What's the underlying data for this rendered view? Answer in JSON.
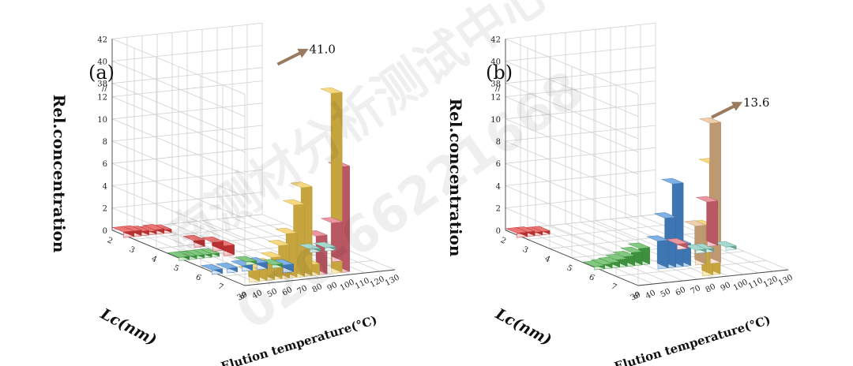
{
  "chart_data": [
    {
      "type": "bar3d",
      "panel_label": "(a)",
      "zlabel": "Rel.concentration",
      "xlabel": "Elution temperature(°C)",
      "ylabel": "Lc(nm)",
      "z_ticks": [
        "0",
        "2",
        "4",
        "6",
        "8",
        "10",
        "12",
        "38",
        "40",
        "42"
      ],
      "x_ticks": [
        "30",
        "40",
        "50",
        "60",
        "70",
        "80",
        "90",
        "100",
        "110",
        "120",
        "130"
      ],
      "y_ticks": [
        "2",
        "3",
        "4",
        "5",
        "6",
        "7",
        "8"
      ],
      "z_axis_break": [
        12,
        38
      ],
      "callout": {
        "text": "41.0",
        "x": 95,
        "y": 5,
        "value": 41.0
      },
      "bars": [
        {
          "x": 30,
          "y": 2.5,
          "z": 0.5,
          "color": "#e23b3b"
        },
        {
          "x": 35,
          "y": 2.5,
          "z": 0.5,
          "color": "#e23b3b"
        },
        {
          "x": 40,
          "y": 2.5,
          "z": 0.4,
          "color": "#e23b3b"
        },
        {
          "x": 45,
          "y": 2.5,
          "z": 0.3,
          "color": "#e23b3b"
        },
        {
          "x": 50,
          "y": 2.5,
          "z": 0.4,
          "color": "#e23b3b"
        },
        {
          "x": 55,
          "y": 2.5,
          "z": 0.3,
          "color": "#e23b3b"
        },
        {
          "x": 55,
          "y": 4,
          "z": 0.6,
          "color": "#e23b3b"
        },
        {
          "x": 60,
          "y": 4.5,
          "z": 0.8,
          "color": "#e23b3b"
        },
        {
          "x": 60,
          "y": 5,
          "z": 0.9,
          "color": "#e23b3b"
        },
        {
          "x": 30,
          "y": 5,
          "z": 0.3,
          "color": "#4bb04b"
        },
        {
          "x": 35,
          "y": 5,
          "z": 0.3,
          "color": "#4bb04b"
        },
        {
          "x": 40,
          "y": 5,
          "z": 0.3,
          "color": "#4bb04b"
        },
        {
          "x": 45,
          "y": 5,
          "z": 0.3,
          "color": "#4bb04b"
        },
        {
          "x": 50,
          "y": 5,
          "z": 0.3,
          "color": "#4bb04b"
        },
        {
          "x": 60,
          "y": 6,
          "z": 0.3,
          "color": "#4bb04b"
        },
        {
          "x": 70,
          "y": 6.5,
          "z": 0.3,
          "color": "#4bb04b"
        },
        {
          "x": 30,
          "y": 6.5,
          "z": 0.4,
          "color": "#4a90d9"
        },
        {
          "x": 40,
          "y": 6.5,
          "z": 0.4,
          "color": "#4a90d9"
        },
        {
          "x": 50,
          "y": 6.5,
          "z": 0.5,
          "color": "#4a90d9"
        },
        {
          "x": 60,
          "y": 6.5,
          "z": 0.6,
          "color": "#4a90d9"
        },
        {
          "x": 70,
          "y": 7,
          "z": 0.7,
          "color": "#4a90d9"
        },
        {
          "x": 40,
          "y": 7.5,
          "z": 1.0,
          "color": "#f2c94c"
        },
        {
          "x": 45,
          "y": 7.5,
          "z": 1.2,
          "color": "#f2c94c"
        },
        {
          "x": 50,
          "y": 7.5,
          "z": 1.5,
          "color": "#f2c94c"
        },
        {
          "x": 55,
          "y": 7.5,
          "z": 2.0,
          "color": "#f2c94c"
        },
        {
          "x": 60,
          "y": 7.5,
          "z": 3.0,
          "color": "#f2c94c"
        },
        {
          "x": 65,
          "y": 7.5,
          "z": 4.0,
          "color": "#f2c94c"
        },
        {
          "x": 70,
          "y": 7.5,
          "z": 6.5,
          "color": "#f2c94c"
        },
        {
          "x": 75,
          "y": 7.5,
          "z": 8.0,
          "color": "#f2c94c"
        },
        {
          "x": 80,
          "y": 7.5,
          "z": 1.0,
          "color": "#f2c94c"
        },
        {
          "x": 85,
          "y": 7.5,
          "z": 3.5,
          "color": "#e26b7a"
        },
        {
          "x": 95,
          "y": 7.5,
          "z": 41.0,
          "color": "#f2c94c"
        },
        {
          "x": 100,
          "y": 7.5,
          "z": 9.5,
          "color": "#e26b7a"
        },
        {
          "x": 110,
          "y": 6.5,
          "z": 3.5,
          "color": "#e26b7a"
        },
        {
          "x": 110,
          "y": 5.5,
          "z": 0.3,
          "color": "#7fc8b8"
        },
        {
          "x": 120,
          "y": 5.5,
          "z": 0.3,
          "color": "#7fc8b8"
        }
      ]
    },
    {
      "type": "bar3d",
      "panel_label": "(b)",
      "zlabel": "Rel.concentration",
      "xlabel": "Elution temperature(°C)",
      "ylabel": "Lc(nm)",
      "z_ticks": [
        "0",
        "2",
        "4",
        "6",
        "8",
        "10",
        "12",
        "38",
        "40",
        "42"
      ],
      "x_ticks": [
        "30",
        "40",
        "50",
        "60",
        "70",
        "80",
        "90",
        "100",
        "110",
        "120",
        "130"
      ],
      "y_ticks": [
        "2",
        "3",
        "4",
        "5",
        "6",
        "7",
        "8"
      ],
      "z_axis_break": [
        12,
        38
      ],
      "callout": {
        "text": "13.6",
        "x": 100,
        "y": 6.5,
        "value": 13.6
      },
      "bars": [
        {
          "x": 30,
          "y": 2.5,
          "z": 0.4,
          "color": "#e23b3b"
        },
        {
          "x": 35,
          "y": 2.5,
          "z": 0.4,
          "color": "#e23b3b"
        },
        {
          "x": 40,
          "y": 2.5,
          "z": 0.3,
          "color": "#e23b3b"
        },
        {
          "x": 45,
          "y": 2.5,
          "z": 0.3,
          "color": "#e23b3b"
        },
        {
          "x": 30,
          "y": 6,
          "z": 0.3,
          "color": "#4bb04b"
        },
        {
          "x": 35,
          "y": 6,
          "z": 0.4,
          "color": "#4bb04b"
        },
        {
          "x": 40,
          "y": 6,
          "z": 0.5,
          "color": "#4bb04b"
        },
        {
          "x": 45,
          "y": 6,
          "z": 0.7,
          "color": "#4bb04b"
        },
        {
          "x": 50,
          "y": 6,
          "z": 0.9,
          "color": "#4bb04b"
        },
        {
          "x": 55,
          "y": 6,
          "z": 1.2,
          "color": "#4bb04b"
        },
        {
          "x": 60,
          "y": 6,
          "z": 1.5,
          "color": "#4bb04b"
        },
        {
          "x": 65,
          "y": 6.5,
          "z": 2.5,
          "color": "#4a90d9"
        },
        {
          "x": 70,
          "y": 6.5,
          "z": 4.5,
          "color": "#4a90d9"
        },
        {
          "x": 75,
          "y": 6.5,
          "z": 7.5,
          "color": "#4a90d9"
        },
        {
          "x": 80,
          "y": 6.5,
          "z": 2.0,
          "color": "#4a90d9"
        },
        {
          "x": 80,
          "y": 7.5,
          "z": 4.5,
          "color": "#f2c94c"
        },
        {
          "x": 85,
          "y": 7.5,
          "z": 10.0,
          "color": "#f2c94c"
        },
        {
          "x": 90,
          "y": 6.5,
          "z": 3.5,
          "color": "#e8b98a"
        },
        {
          "x": 100,
          "y": 6.5,
          "z": 13.6,
          "color": "#e8b98a"
        },
        {
          "x": 100,
          "y": 5,
          "z": 0.5,
          "color": "#e26b7a"
        },
        {
          "x": 105,
          "y": 5.5,
          "z": 0.3,
          "color": "#7fc8b8"
        },
        {
          "x": 110,
          "y": 5.5,
          "z": 0.3,
          "color": "#7fc8b8"
        },
        {
          "x": 120,
          "y": 5,
          "z": 4.0,
          "color": "#e26b7a"
        },
        {
          "x": 125,
          "y": 5.5,
          "z": 0.3,
          "color": "#7fc8b8"
        }
      ]
    }
  ]
}
